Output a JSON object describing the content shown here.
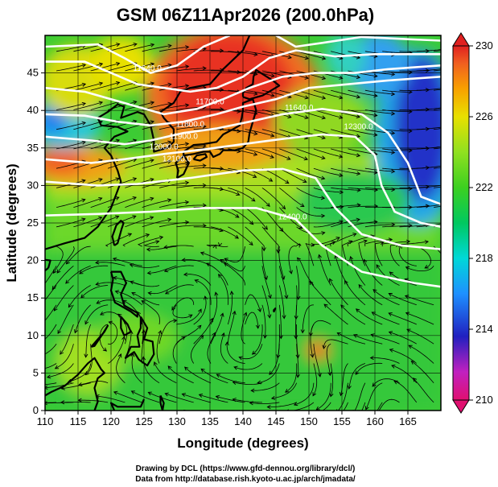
{
  "title": "GSM 06Z11Apr2026 (200.0hPa)",
  "xlabel": "Longitude (degrees)",
  "ylabel": "Latitude  (degrees)",
  "credits": [
    "Drawing by DCL (https://www.gfd-dennou.org/library/dcl/)",
    "Data from http://database.rish.kyoto-u.ac.jp/arch/jmadata/"
  ],
  "chart_data": {
    "type": "heatmap",
    "variable": "temperature with wind streamlines and geopotential height contours",
    "xlim": [
      110,
      170
    ],
    "ylim": [
      0,
      50
    ],
    "x_ticks": [
      "110",
      "115",
      "120",
      "125",
      "130",
      "135",
      "140",
      "145",
      "150",
      "155",
      "160",
      "165"
    ],
    "y_ticks": [
      "0",
      "5",
      "10",
      "15",
      "20",
      "25",
      "30",
      "35",
      "40",
      "45"
    ],
    "colorbar": {
      "min": 210,
      "max": 230,
      "tick_labels": [
        "230",
        "226",
        "222",
        "218",
        "214",
        "210"
      ],
      "colors": [
        "#e01070",
        "#c020c0",
        "#2020c0",
        "#1e90ff",
        "#00d8d8",
        "#00c860",
        "#3cd020",
        "#90e020",
        "#e8e000",
        "#f8a000",
        "#f06020",
        "#e02020"
      ]
    },
    "contour_labels": [
      {
        "text": "11640.0",
        "lon": 125.5,
        "lat": 45.3
      },
      {
        "text": "11700.0",
        "lon": 135.0,
        "lat": 40.8
      },
      {
        "text": "11640.0",
        "lon": 148.5,
        "lat": 40.0
      },
      {
        "text": "11800.0",
        "lon": 132.0,
        "lat": 37.8
      },
      {
        "text": "11900.0",
        "lon": 131.0,
        "lat": 36.2
      },
      {
        "text": "12000.0",
        "lon": 128.0,
        "lat": 34.8
      },
      {
        "text": "12100.0",
        "lon": 130.0,
        "lat": 33.2
      },
      {
        "text": "12300.0",
        "lon": 157.5,
        "lat": 37.5
      },
      {
        "text": "12400.0",
        "lon": 147.5,
        "lat": 25.5
      }
    ]
  },
  "colors": {
    "contour": "#ffffff",
    "streamline": "#000000",
    "coast": "#000000",
    "grid": "#000000"
  }
}
